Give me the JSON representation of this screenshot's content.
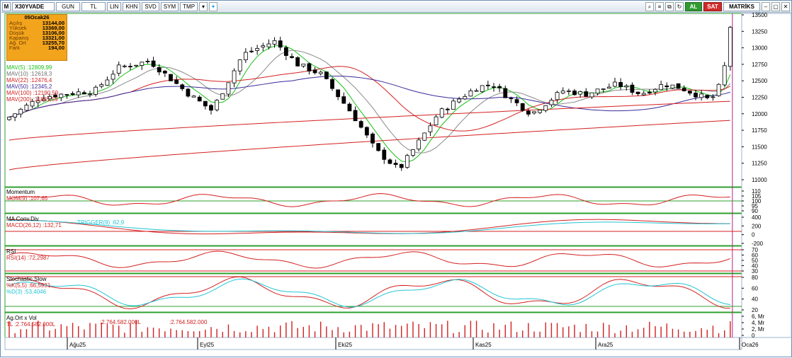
{
  "toolbar": {
    "logo": "M",
    "symbol": "X30YVADE",
    "buttons": [
      "GUN",
      "TL",
      "LIN",
      "KHN",
      "SVD",
      "SYM",
      "TMP"
    ],
    "right_buttons": [
      "AL",
      "SAT",
      "MATRİKS"
    ]
  },
  "info_box": {
    "title": "05Ocak26",
    "rows": [
      {
        "label": "Açılış",
        "value": "13144,00"
      },
      {
        "label": "Yüksek",
        "value": "13369,00"
      },
      {
        "label": "Düşük",
        "value": "13106,00"
      },
      {
        "label": "Kapanış",
        "value": "13321,00"
      },
      {
        "label": "Ağ. Ort",
        "value": "13255,70"
      },
      {
        "label": "Fark",
        "value": "194,00"
      }
    ]
  },
  "moving_averages": [
    {
      "label": "MAV(5)",
      "value": "12809,99",
      "color": "#16c216"
    },
    {
      "label": "MAV(10)",
      "value": "12618,3",
      "color": "#8a8a8a"
    },
    {
      "label": "MAV(22)",
      "value": "12476,4",
      "color": "#d42020"
    },
    {
      "label": "MAV(50)",
      "value": "12345,2",
      "color": "#3a2a9a"
    },
    {
      "label": "MAV(100)",
      "value": "12190,59",
      "color": "#d42020"
    },
    {
      "label": "MAV(200)",
      "value": "11881,59",
      "color": "#d42020"
    }
  ],
  "price_axis": [
    "13500",
    "13250",
    "13000",
    "12750",
    "12500",
    "12250",
    "12000",
    "11750",
    "11500",
    "11250",
    "11000"
  ],
  "date_axis": [
    "Ağu25",
    "Eyl25",
    "Eki25",
    "Kas25",
    "Ara25",
    "Oca26"
  ],
  "panels": {
    "momentum": {
      "title": "Momentum",
      "line": "MOM(9)",
      "value": "107,65",
      "ticks": [
        "110",
        "105",
        "100",
        "95",
        "90"
      ]
    },
    "macd": {
      "title": "MA Conv.Div",
      "line": "MACD(26,12)",
      "value": "132,71",
      "trigger": "TRIGGER(9)",
      "trigger_value": "62,9",
      "ticks": [
        "400",
        "200",
        "0",
        "-200"
      ]
    },
    "rsi": {
      "title": "RSI",
      "line": "RSI(14)",
      "value": "72,2987",
      "ticks": [
        "70",
        "60",
        "50",
        "40",
        "30"
      ]
    },
    "stoch": {
      "title": "Stochastic,Slow",
      "k": "%K(5,5)",
      "k_value": "66,5931",
      "d": "%D(3)",
      "d_value": "53,4046",
      "ticks": [
        "80",
        "60",
        "40",
        "20"
      ]
    },
    "volume": {
      "title": "Ag.Ort x Vol",
      "unit": "TL",
      "v1": "2.764.582.000",
      "v2": "2.764.582.000",
      "v3": "2.764.582.000",
      "suffix": "L",
      "ticks": [
        "6, Mr",
        "4, Mr",
        "2, Mr",
        "0"
      ]
    }
  },
  "colors": {
    "bull": "#ffffff",
    "bear": "#000000",
    "grid": "#2fa02f",
    "indicator_red": "#d42020",
    "signal_cyan": "#22c4d4",
    "marker": "#b02090"
  }
}
